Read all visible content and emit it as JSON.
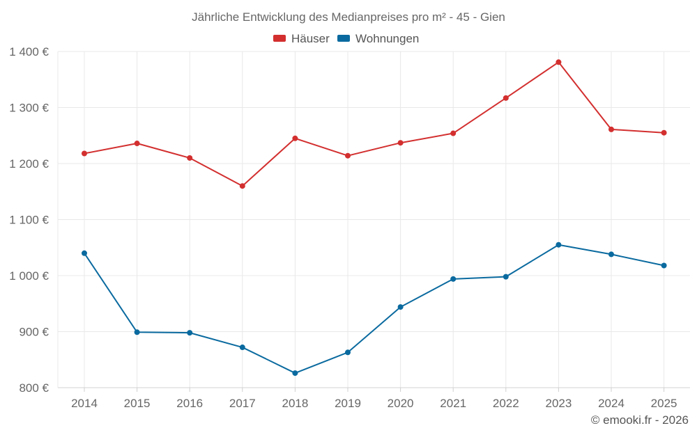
{
  "chart_data": {
    "type": "line",
    "title": "Jährliche Entwicklung des Medianpreises pro m² - 45 - Gien",
    "categories": [
      "2014",
      "2015",
      "2016",
      "2017",
      "2018",
      "2019",
      "2020",
      "2021",
      "2022",
      "2023",
      "2024",
      "2025"
    ],
    "series": [
      {
        "name": "Häuser",
        "color": "#d32f2f",
        "values": [
          1218,
          1236,
          1210,
          1160,
          1245,
          1214,
          1237,
          1254,
          1317,
          1381,
          1261,
          1255
        ]
      },
      {
        "name": "Wohnungen",
        "color": "#0a6a9f",
        "values": [
          1040,
          899,
          898,
          872,
          826,
          863,
          944,
          994,
          998,
          1055,
          1038,
          1018
        ]
      }
    ],
    "ylim": [
      800,
      1400
    ],
    "yticks": [
      800,
      900,
      1000,
      1100,
      1200,
      1300,
      1400
    ],
    "ytick_labels": [
      "800 €",
      "900 €",
      "1 000 €",
      "1 100 €",
      "1 200 €",
      "1 300 €",
      "1 400 €"
    ],
    "xlabel": "",
    "ylabel": "",
    "grid": true,
    "legend_position": "top-center"
  },
  "footer": {
    "credit": "© emooki.fr - 2026"
  }
}
